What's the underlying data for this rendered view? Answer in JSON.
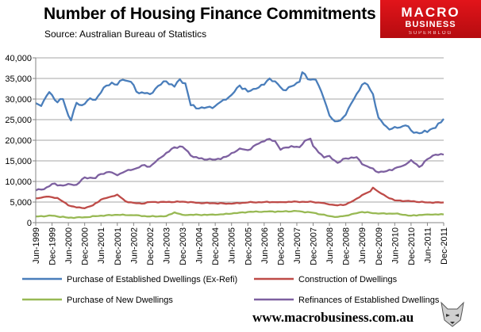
{
  "header": {
    "title": "Number of Housing  Finance Commitments",
    "subtitle": "Source: Australian Bureau of Statistics"
  },
  "logo": {
    "line1": "MACRO",
    "line2": "BUSINESS",
    "line3": "SUPERBLOG",
    "icon": "wolf-head-icon"
  },
  "footer": {
    "url": "www.macrobusiness.com.au"
  },
  "colors": {
    "established": "#4a7ebb",
    "construction": "#be4b48",
    "new_dwellings": "#98b954",
    "refinances": "#7d60a0",
    "logo_red": "#e2141a"
  },
  "chart_data": {
    "type": "line",
    "title": "Number of Housing  Finance Commitments",
    "subtitle": "Source: Australian Bureau of Statistics",
    "x_start": "Jun-1999",
    "x_frequency": "monthly",
    "x_tick_labels": [
      "Jun-1999",
      "Dec-1999",
      "Jun-2000",
      "Dec-2000",
      "Jun-2001",
      "Dec-2001",
      "Jun-2002",
      "Dec-2002",
      "Jun-2003",
      "Dec-2003",
      "Jun-2004",
      "Dec-2004",
      "Jun-2005",
      "Dec-2005",
      "Jun-2006",
      "Dec-2006",
      "Jun-2007",
      "Dec-2007",
      "Jun-2008",
      "Dec-2008",
      "Jun-2009",
      "Dec-2009",
      "Jun-2010",
      "Dec-2010",
      "Jun-2011",
      "Dec-2011"
    ],
    "y_tick_labels": [
      "0",
      "5,000",
      "10,000",
      "15,000",
      "20,000",
      "25,000",
      "30,000",
      "35,000",
      "40,000"
    ],
    "ylim": [
      0,
      40000
    ],
    "grid": "horizontal",
    "legend_position": "bottom",
    "series": [
      {
        "name": "Purchase of Established Dwellings (Ex-Refi)",
        "color": "#4a7ebb",
        "anchors": [
          [
            "Jun-1999",
            29000
          ],
          [
            "Aug-1999",
            28300
          ],
          [
            "Nov-1999",
            31700
          ],
          [
            "Feb-2000",
            29200
          ],
          [
            "Apr-2000",
            30000
          ],
          [
            "Jun-2000",
            26000
          ],
          [
            "Jul-2000",
            24800
          ],
          [
            "Sep-2000",
            29100
          ],
          [
            "Nov-2000",
            28500
          ],
          [
            "Feb-2001",
            30200
          ],
          [
            "Apr-2001",
            29800
          ],
          [
            "Jul-2001",
            32800
          ],
          [
            "Oct-2001",
            34000
          ],
          [
            "Dec-2001",
            33500
          ],
          [
            "Feb-2002",
            34700
          ],
          [
            "May-2002",
            34200
          ],
          [
            "Jul-2002",
            31800
          ],
          [
            "Oct-2002",
            31400
          ],
          [
            "Dec-2002",
            31200
          ],
          [
            "Mar-2003",
            33200
          ],
          [
            "Jun-2003",
            34300
          ],
          [
            "Sep-2003",
            33000
          ],
          [
            "Nov-2003",
            34800
          ],
          [
            "Jan-2004",
            33800
          ],
          [
            "Mar-2004",
            28500
          ],
          [
            "Jun-2004",
            27700
          ],
          [
            "Sep-2004",
            28000
          ],
          [
            "Dec-2004",
            28300
          ],
          [
            "Mar-2005",
            29800
          ],
          [
            "Jun-2005",
            31000
          ],
          [
            "Sep-2005",
            33300
          ],
          [
            "Dec-2005",
            31800
          ],
          [
            "Mar-2006",
            32500
          ],
          [
            "Jun-2006",
            33500
          ],
          [
            "Aug-2006",
            35000
          ],
          [
            "Oct-2006",
            34300
          ],
          [
            "Jan-2007",
            32200
          ],
          [
            "Apr-2007",
            33100
          ],
          [
            "Jul-2007",
            34200
          ],
          [
            "Aug-2007",
            36500
          ],
          [
            "Oct-2007",
            34800
          ],
          [
            "Jan-2008",
            34700
          ],
          [
            "Apr-2008",
            30000
          ],
          [
            "Jun-2008",
            26000
          ],
          [
            "Aug-2008",
            24600
          ],
          [
            "Oct-2008",
            24800
          ],
          [
            "Dec-2008",
            26200
          ],
          [
            "Mar-2009",
            30000
          ],
          [
            "Jun-2009",
            33500
          ],
          [
            "Aug-2009",
            33500
          ],
          [
            "Oct-2009",
            31200
          ],
          [
            "Dec-2009",
            25500
          ],
          [
            "Feb-2010",
            23800
          ],
          [
            "Apr-2010",
            22600
          ],
          [
            "Jul-2010",
            23000
          ],
          [
            "Oct-2010",
            23600
          ],
          [
            "Jan-2011",
            21800
          ],
          [
            "Apr-2011",
            21800
          ],
          [
            "Jul-2011",
            22600
          ],
          [
            "Sep-2011",
            23000
          ],
          [
            "Dec-2011",
            25200
          ]
        ]
      },
      {
        "name": "Construction of Dwellings",
        "color": "#be4b48",
        "anchors": [
          [
            "Jun-1999",
            5900
          ],
          [
            "Oct-1999",
            6300
          ],
          [
            "Feb-2000",
            6000
          ],
          [
            "Jun-2000",
            4200
          ],
          [
            "Sep-2000",
            3700
          ],
          [
            "Dec-2000",
            3500
          ],
          [
            "Mar-2001",
            4200
          ],
          [
            "Jun-2001",
            5600
          ],
          [
            "Sep-2001",
            6200
          ],
          [
            "Dec-2001",
            6800
          ],
          [
            "Mar-2002",
            5200
          ],
          [
            "Jun-2002",
            4800
          ],
          [
            "Sep-2002",
            4600
          ],
          [
            "Dec-2002",
            5000
          ],
          [
            "Jun-2003",
            5000
          ],
          [
            "Dec-2003",
            5100
          ],
          [
            "Jun-2004",
            4800
          ],
          [
            "Dec-2004",
            4700
          ],
          [
            "Jun-2005",
            4600
          ],
          [
            "Dec-2005",
            4900
          ],
          [
            "Jun-2006",
            5000
          ],
          [
            "Dec-2006",
            5000
          ],
          [
            "Jun-2007",
            5100
          ],
          [
            "Dec-2007",
            5000
          ],
          [
            "Mar-2008",
            4800
          ],
          [
            "Jun-2008",
            4400
          ],
          [
            "Sep-2008",
            4200
          ],
          [
            "Dec-2008",
            4400
          ],
          [
            "Mar-2009",
            5400
          ],
          [
            "Jun-2009",
            6700
          ],
          [
            "Sep-2009",
            7600
          ],
          [
            "Oct-2009",
            8500
          ],
          [
            "Dec-2009",
            7500
          ],
          [
            "Mar-2010",
            6300
          ],
          [
            "Jun-2010",
            5400
          ],
          [
            "Dec-2010",
            5200
          ],
          [
            "Jun-2011",
            4900
          ],
          [
            "Dec-2011",
            4900
          ]
        ]
      },
      {
        "name": "Purchase of New Dwellings",
        "color": "#98b954",
        "anchors": [
          [
            "Jun-1999",
            1500
          ],
          [
            "Dec-1999",
            1700
          ],
          [
            "Jun-2000",
            1200
          ],
          [
            "Dec-2000",
            1300
          ],
          [
            "Jun-2001",
            1700
          ],
          [
            "Dec-2001",
            1900
          ],
          [
            "Jun-2002",
            1800
          ],
          [
            "Dec-2002",
            1500
          ],
          [
            "Jun-2003",
            1600
          ],
          [
            "Sep-2003",
            2500
          ],
          [
            "Dec-2003",
            1900
          ],
          [
            "Jun-2004",
            1900
          ],
          [
            "Dec-2004",
            1900
          ],
          [
            "Jun-2005",
            2200
          ],
          [
            "Dec-2005",
            2600
          ],
          [
            "Jun-2006",
            2700
          ],
          [
            "Dec-2006",
            2700
          ],
          [
            "Jun-2007",
            2800
          ],
          [
            "Dec-2007",
            2400
          ],
          [
            "Jun-2008",
            1600
          ],
          [
            "Sep-2008",
            1400
          ],
          [
            "Dec-2008",
            1700
          ],
          [
            "Mar-2009",
            2200
          ],
          [
            "Jun-2009",
            2600
          ],
          [
            "Dec-2009",
            2200
          ],
          [
            "Jun-2010",
            2200
          ],
          [
            "Dec-2010",
            1700
          ],
          [
            "Jun-2011",
            2000
          ],
          [
            "Dec-2011",
            2000
          ]
        ]
      },
      {
        "name": "Refinances of Established Dwellings",
        "color": "#7d60a0",
        "anchors": [
          [
            "Jun-1999",
            7800
          ],
          [
            "Sep-1999",
            8100
          ],
          [
            "Dec-1999",
            9400
          ],
          [
            "Apr-2000",
            9000
          ],
          [
            "Jun-2000",
            9400
          ],
          [
            "Sep-2000",
            9200
          ],
          [
            "Dec-2000",
            11000
          ],
          [
            "Apr-2001",
            10800
          ],
          [
            "Jun-2001",
            11800
          ],
          [
            "Sep-2001",
            12300
          ],
          [
            "Dec-2001",
            11500
          ],
          [
            "Apr-2002",
            12800
          ],
          [
            "Jul-2002",
            13200
          ],
          [
            "Oct-2002",
            14000
          ],
          [
            "Dec-2002",
            13600
          ],
          [
            "Apr-2003",
            15800
          ],
          [
            "Sep-2003",
            18300
          ],
          [
            "Dec-2003",
            18400
          ],
          [
            "Apr-2004",
            15900
          ],
          [
            "Sep-2004",
            15300
          ],
          [
            "Dec-2004",
            15300
          ],
          [
            "Apr-2005",
            16000
          ],
          [
            "Sep-2005",
            18000
          ],
          [
            "Dec-2005",
            17600
          ],
          [
            "Apr-2006",
            19200
          ],
          [
            "Jul-2006",
            20200
          ],
          [
            "Oct-2006",
            19800
          ],
          [
            "Dec-2006",
            17700
          ],
          [
            "Apr-2007",
            18600
          ],
          [
            "Jul-2007",
            18300
          ],
          [
            "Sep-2007",
            19900
          ],
          [
            "Nov-2007",
            20400
          ],
          [
            "Dec-2007",
            18600
          ],
          [
            "Apr-2008",
            15800
          ],
          [
            "Jun-2008",
            16200
          ],
          [
            "Sep-2008",
            14500
          ],
          [
            "Dec-2008",
            15600
          ],
          [
            "Apr-2009",
            15900
          ],
          [
            "Jun-2009",
            14200
          ],
          [
            "Sep-2009",
            13300
          ],
          [
            "Dec-2009",
            12200
          ],
          [
            "Mar-2010",
            12500
          ],
          [
            "Jun-2010",
            13200
          ],
          [
            "Sep-2010",
            13800
          ],
          [
            "Dec-2010",
            15200
          ],
          [
            "Mar-2011",
            13500
          ],
          [
            "Jun-2011",
            15400
          ],
          [
            "Sep-2011",
            16500
          ],
          [
            "Dec-2011",
            16500
          ]
        ]
      }
    ]
  }
}
